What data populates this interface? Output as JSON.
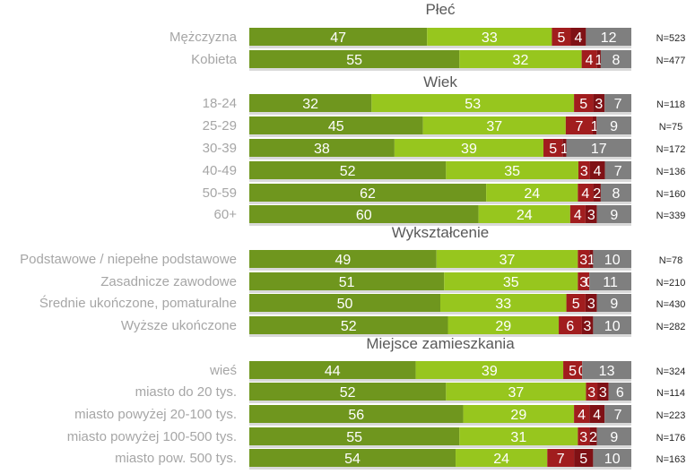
{
  "chart_data": {
    "type": "bar",
    "stacked": true,
    "orientation": "horizontal",
    "scale_max": 100,
    "colors": [
      "#6f961e",
      "#97c61e",
      "#a11d1e",
      "#7f1115",
      "#7f7f7f"
    ],
    "groups": [
      {
        "title": "Płeć",
        "rows": [
          {
            "label": "Mężczyzna",
            "values": [
              47,
              33,
              5,
              4,
              12
            ],
            "n": "N=523"
          },
          {
            "label": "Kobieta",
            "values": [
              55,
              32,
              4,
              1,
              8
            ],
            "n": "N=477"
          }
        ]
      },
      {
        "title": "Wiek",
        "rows": [
          {
            "label": "18-24",
            "values": [
              32,
              53,
              5,
              3,
              7
            ],
            "n": "N=118"
          },
          {
            "label": "25-29",
            "values": [
              45,
              37,
              7,
              1,
              9
            ],
            "n": "N=75"
          },
          {
            "label": "30-39",
            "values": [
              38,
              39,
              5,
              1,
              17
            ],
            "n": "N=172"
          },
          {
            "label": "40-49",
            "values": [
              52,
              35,
              3,
              4,
              7
            ],
            "n": "N=136"
          },
          {
            "label": "50-59",
            "values": [
              62,
              24,
              4,
              2,
              8
            ],
            "n": "N=160"
          },
          {
            "label": "60+",
            "values": [
              60,
              24,
              4,
              3,
              9
            ],
            "n": "N=339"
          }
        ]
      },
      {
        "title": "Wykształcenie",
        "rows": [
          {
            "label": "Podstawowe / niepełne podstawowe",
            "values": [
              49,
              37,
              3,
              1,
              10
            ],
            "n": "N=78"
          },
          {
            "label": "Zasadnicze zawodowe",
            "values": [
              51,
              35,
              3,
              0,
              11
            ],
            "n": "N=210"
          },
          {
            "label": "Średnie ukończone, pomaturalne",
            "values": [
              50,
              33,
              5,
              3,
              9
            ],
            "n": "N=430"
          },
          {
            "label": "Wyższe ukończone",
            "values": [
              52,
              29,
              6,
              3,
              10
            ],
            "n": "N=282"
          }
        ]
      },
      {
        "title": "Miejsce zamieszkania",
        "rows": [
          {
            "label": "wieś",
            "values": [
              44,
              39,
              5,
              0,
              13
            ],
            "n": "N=324"
          },
          {
            "label": "miasto do 20 tys.",
            "values": [
              52,
              37,
              3,
              3,
              6
            ],
            "n": "N=114"
          },
          {
            "label": "miasto powyżej 20-100 tys.",
            "values": [
              56,
              29,
              4,
              4,
              7
            ],
            "n": "N=223"
          },
          {
            "label": "miasto powyżej 100-500 tys.",
            "values": [
              55,
              31,
              3,
              2,
              9
            ],
            "n": "N=176"
          },
          {
            "label": "miasto pow. 500 tys.",
            "values": [
              54,
              24,
              7,
              5,
              10
            ],
            "n": "N=163"
          }
        ]
      }
    ]
  }
}
